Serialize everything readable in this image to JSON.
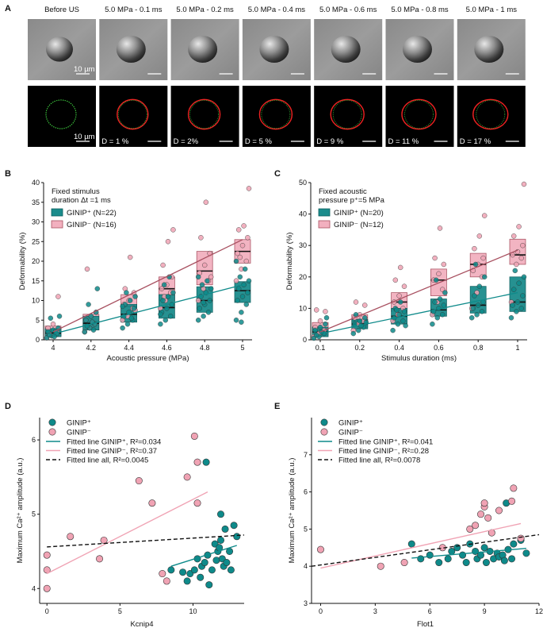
{
  "colors": {
    "teal": "#0e8a8a",
    "teal_fill": "#1b8c8c",
    "teal_dark": "#0b5e5e",
    "pink": "#f0a3b4",
    "pink_fill": "#f2b0bf",
    "pink_line": "#a85060",
    "green_trace": "#3fce3f",
    "red_trace": "#ee2222",
    "black": "#111111"
  },
  "panel_a": {
    "label": "A",
    "scale_bar_label": "10 µm",
    "frames": [
      {
        "title": "Before US",
        "deformability": ""
      },
      {
        "title": "5.0 MPa - 0.1 ms",
        "deformability": "D = 1 %"
      },
      {
        "title": "5.0 MPa - 0.2 ms",
        "deformability": "D = 2%"
      },
      {
        "title": "5.0 MPa - 0.4 ms",
        "deformability": "D = 5 %"
      },
      {
        "title": "5.0 MPa - 0.6 ms",
        "deformability": "D = 9 %"
      },
      {
        "title": "5.0 MPa - 0.8 ms",
        "deformability": "D = 11 %"
      },
      {
        "title": "5.0 MPa - 1 ms",
        "deformability": "D = 17 %"
      }
    ]
  },
  "panel_b": {
    "label": "B"
  },
  "panel_c": {
    "label": "C"
  },
  "panel_d": {
    "label": "D"
  },
  "panel_e": {
    "label": "E"
  },
  "chart_data": [
    {
      "id": "B",
      "type": "box",
      "annotation": [
        "Fixed stimulus",
        "duration Δt =1 ms"
      ],
      "xlabel": "Acoustic pressure (MPa)",
      "ylabel": "Deformability (%)",
      "categories": [
        "4",
        "4.2",
        "4.4",
        "4.6",
        "4.8",
        "5"
      ],
      "ylim": [
        0,
        40
      ],
      "yticks": [
        0,
        5,
        10,
        15,
        20,
        25,
        30,
        35,
        40
      ],
      "series": [
        {
          "name": "GINIP⁺ (N=22)",
          "color": "teal",
          "boxes": [
            {
              "q1": 0.8,
              "median": 1.7,
              "q3": 2.8
            },
            {
              "q1": 2.5,
              "median": 4.2,
              "q3": 6.0
            },
            {
              "q1": 4.5,
              "median": 6.5,
              "q3": 9.0
            },
            {
              "q1": 5.5,
              "median": 8.2,
              "q3": 11.5
            },
            {
              "q1": 7.0,
              "median": 10.0,
              "q3": 13.5
            },
            {
              "q1": 9.5,
              "median": 12.5,
              "q3": 14.8
            }
          ],
          "points": [
            [
              0.5,
              1,
              1.5,
              2,
              2.5,
              3,
              1.2,
              0.8,
              6,
              5.5,
              2.2
            ],
            [
              2,
              3,
              4,
              5,
              6,
              7,
              3.5,
              4.5,
              13,
              9,
              2.5
            ],
            [
              3,
              4,
              5,
              6,
              7,
              8,
              9,
              10,
              11,
              12,
              5.5,
              8.5
            ],
            [
              4,
              5,
              6,
              7,
              8,
              9,
              10,
              11,
              12,
              14,
              16,
              6.5
            ],
            [
              5,
              6,
              7,
              8,
              9,
              10,
              11,
              12,
              13,
              14,
              15,
              16,
              9.5
            ],
            [
              5,
              7,
              9,
              10,
              11,
              12,
              13,
              14,
              15,
              16,
              18,
              20,
              4.5
            ]
          ],
          "fit": [
            1.5,
            14.0
          ]
        },
        {
          "name": "GINIP⁻ (N=16)",
          "color": "pink",
          "boxes": [
            {
              "q1": 1.0,
              "median": 2.0,
              "q3": 3.5
            },
            {
              "q1": 2.5,
              "median": 4.5,
              "q3": 6.5
            },
            {
              "q1": 6.0,
              "median": 8.5,
              "q3": 11.5
            },
            {
              "q1": 10.0,
              "median": 13.0,
              "q3": 16.0
            },
            {
              "q1": 14.0,
              "median": 17.5,
              "q3": 22.5
            },
            {
              "q1": 19.5,
              "median": 22.5,
              "q3": 25.5
            }
          ],
          "points": [
            [
              0.5,
              1,
              2,
              3,
              4,
              11,
              1.5
            ],
            [
              2,
              3,
              4,
              5,
              6,
              7,
              18,
              4.5
            ],
            [
              5,
              6,
              8,
              9,
              10,
              12,
              13,
              21,
              7.5
            ],
            [
              8,
              10,
              12,
              13,
              14,
              16,
              19,
              25,
              28,
              11
            ],
            [
              10,
              13,
              15,
              17,
              19,
              22,
              26,
              35,
              16
            ],
            [
              15,
              18,
              20,
              22,
              24,
              26,
              28,
              29,
              38.5,
              21
            ]
          ],
          "fit": [
            2.0,
            25.5
          ]
        }
      ]
    },
    {
      "id": "C",
      "type": "box",
      "annotation": [
        "Fixed acoustic",
        "pressure p⁺=5 MPa"
      ],
      "xlabel": "Stimulus duration (ms)",
      "ylabel": "Deformability (%)",
      "categories": [
        "0.1",
        "0.2",
        "0.4",
        "0.6",
        "0.8",
        "1"
      ],
      "ylim": [
        0,
        50
      ],
      "yticks": [
        0,
        10,
        20,
        30,
        40,
        50
      ],
      "series": [
        {
          "name": "GINIP⁺ (N=20)",
          "color": "teal",
          "boxes": [
            {
              "q1": 1.0,
              "median": 2.5,
              "q3": 4.0
            },
            {
              "q1": 3.5,
              "median": 5.0,
              "q3": 6.5
            },
            {
              "q1": 5.0,
              "median": 7.5,
              "q3": 10.0
            },
            {
              "q1": 7.5,
              "median": 9.5,
              "q3": 13.0
            },
            {
              "q1": 8.5,
              "median": 11.0,
              "q3": 17.0
            },
            {
              "q1": 9.0,
              "median": 12.0,
              "q3": 20.0
            }
          ],
          "points": [
            [
              0.5,
              1,
              2,
              3,
              4,
              5,
              1.5,
              2.5,
              7
            ],
            [
              2,
              3,
              4,
              5,
              6,
              7,
              8,
              4.5,
              5.5
            ],
            [
              3,
              5,
              6,
              7,
              8,
              9,
              10,
              12,
              4.5,
              9.5
            ],
            [
              5,
              7,
              8,
              9,
              10,
              11,
              12,
              13,
              15,
              19
            ],
            [
              7,
              8,
              9,
              10,
              11,
              12,
              14,
              17,
              20,
              24
            ],
            [
              7,
              9,
              10,
              11,
              12,
              14,
              16,
              18,
              20,
              22
            ]
          ],
          "fit": [
            2.0,
            15.0
          ]
        },
        {
          "name": "GINIP⁻ (N=12)",
          "color": "pink",
          "boxes": [
            {
              "q1": 1.5,
              "median": 3.0,
              "q3": 5.5
            },
            {
              "q1": 4.0,
              "median": 6.0,
              "q3": 8.0
            },
            {
              "q1": 9.0,
              "median": 12.0,
              "q3": 15.0
            },
            {
              "q1": 14.0,
              "median": 19.0,
              "q3": 22.5
            },
            {
              "q1": 20.0,
              "median": 24.0,
              "q3": 27.5
            },
            {
              "q1": 24.0,
              "median": 27.0,
              "q3": 32.0
            }
          ],
          "points": [
            [
              1,
              2,
              3,
              4,
              6,
              9,
              9.5
            ],
            [
              3,
              5,
              6,
              7,
              8,
              11,
              12
            ],
            [
              6,
              8,
              10,
              12,
              14,
              17,
              19,
              23
            ],
            [
              8,
              12,
              16,
              19,
              21,
              24,
              26,
              35.5
            ],
            [
              10,
              15,
              20,
              22,
              24,
              26,
              29,
              33,
              39.5
            ],
            [
              12,
              24,
              26,
              27,
              28,
              30,
              33,
              36,
              49.5
            ]
          ],
          "fit": [
            2.5,
            28.5
          ]
        }
      ]
    },
    {
      "id": "D",
      "type": "scatter",
      "xlabel": "Kcnip4",
      "ylabel": "Maximum Ca²⁺ amplitude (a.u.)",
      "xlim": [
        -0.5,
        13.5
      ],
      "ylim": [
        3.8,
        6.3
      ],
      "xticks": [
        0,
        5,
        10
      ],
      "yticks": [
        4,
        5,
        6
      ],
      "series": [
        {
          "name": "GINIP⁺",
          "color": "teal",
          "points": [
            [
              8.5,
              4.25
            ],
            [
              9.3,
              4.22
            ],
            [
              9.6,
              4.1
            ],
            [
              9.8,
              4.2
            ],
            [
              10.1,
              4.25
            ],
            [
              10.3,
              4.4
            ],
            [
              10.5,
              4.15
            ],
            [
              10.6,
              4.3
            ],
            [
              10.8,
              4.35
            ],
            [
              11.0,
              4.45
            ],
            [
              11.1,
              4.05
            ],
            [
              11.3,
              4.25
            ],
            [
              11.5,
              4.6
            ],
            [
              11.6,
              4.38
            ],
            [
              11.7,
              4.5
            ],
            [
              11.8,
              4.55
            ],
            [
              11.9,
              4.65
            ],
            [
              12.0,
              4.4
            ],
            [
              12.1,
              4.3
            ],
            [
              12.2,
              4.8
            ],
            [
              12.3,
              4.35
            ],
            [
              12.5,
              4.5
            ],
            [
              12.6,
              4.25
            ],
            [
              12.8,
              4.85
            ],
            [
              13.0,
              4.7
            ],
            [
              11.9,
              5.0
            ],
            [
              10.9,
              5.7
            ]
          ]
        },
        {
          "name": "GINIP⁻",
          "color": "pink",
          "points": [
            [
              0,
              4.0
            ],
            [
              0,
              4.25
            ],
            [
              0,
              4.45
            ],
            [
              1.6,
              4.7
            ],
            [
              3.6,
              4.4
            ],
            [
              3.9,
              4.65
            ],
            [
              6.3,
              5.45
            ],
            [
              7.2,
              5.15
            ],
            [
              7.9,
              4.2
            ],
            [
              8.2,
              4.1
            ],
            [
              9.6,
              5.5
            ],
            [
              10.1,
              6.05
            ],
            [
              10.3,
              5.15
            ],
            [
              10.3,
              5.7
            ]
          ]
        }
      ],
      "fits": [
        {
          "label": "Fitted line GINIP⁺, R²=0.034",
          "color": "teal",
          "dash": false,
          "x": [
            8.5,
            13.0
          ],
          "y": [
            4.3,
            4.58
          ]
        },
        {
          "label": "Fitted line GINIP⁻, R²=0.37",
          "color": "pink",
          "dash": false,
          "x": [
            0,
            11.0
          ],
          "y": [
            4.2,
            5.3
          ]
        },
        {
          "label": "Fitted line all, R²=0.0045",
          "color": "black",
          "dash": true,
          "x": [
            0,
            13.5
          ],
          "y": [
            4.56,
            4.72
          ]
        }
      ]
    },
    {
      "id": "E",
      "type": "scatter",
      "xlabel": "Flot1",
      "ylabel": "Maximum Ca²⁺ amplitude (a.u.)",
      "xlim": [
        -0.5,
        12
      ],
      "ylim": [
        3,
        8
      ],
      "xticks": [
        0,
        3,
        6,
        9,
        12
      ],
      "yticks": [
        3,
        4,
        5,
        6,
        7
      ],
      "series": [
        {
          "name": "GINIP⁺",
          "color": "teal",
          "points": [
            [
              5.0,
              4.6
            ],
            [
              5.5,
              4.2
            ],
            [
              6.0,
              4.3
            ],
            [
              6.5,
              4.1
            ],
            [
              7.0,
              4.2
            ],
            [
              7.2,
              4.4
            ],
            [
              7.5,
              4.5
            ],
            [
              7.8,
              4.3
            ],
            [
              8.0,
              4.1
            ],
            [
              8.2,
              4.6
            ],
            [
              8.5,
              4.4
            ],
            [
              8.6,
              4.2
            ],
            [
              8.8,
              4.3
            ],
            [
              9.0,
              4.5
            ],
            [
              9.1,
              4.1
            ],
            [
              9.3,
              4.4
            ],
            [
              9.5,
              4.2
            ],
            [
              9.7,
              4.35
            ],
            [
              9.8,
              4.25
            ],
            [
              10.0,
              4.3
            ],
            [
              10.1,
              4.15
            ],
            [
              10.3,
              4.45
            ],
            [
              10.5,
              4.2
            ],
            [
              10.6,
              4.6
            ],
            [
              11.3,
              4.35
            ],
            [
              10.2,
              5.7
            ],
            [
              11.0,
              4.7
            ]
          ]
        },
        {
          "name": "GINIP⁻",
          "color": "pink",
          "points": [
            [
              0,
              4.45
            ],
            [
              3.3,
              4.0
            ],
            [
              4.6,
              4.1
            ],
            [
              6.7,
              4.5
            ],
            [
              8.2,
              5.0
            ],
            [
              8.5,
              5.1
            ],
            [
              8.8,
              5.4
            ],
            [
              9.0,
              5.6
            ],
            [
              9.0,
              5.7
            ],
            [
              9.2,
              5.3
            ],
            [
              9.4,
              4.9
            ],
            [
              9.8,
              5.5
            ],
            [
              10.6,
              6.1
            ],
            [
              10.5,
              5.75
            ],
            [
              11.0,
              4.75
            ]
          ]
        }
      ],
      "fits": [
        {
          "label": "Fitted line GINIP⁺, R²=0.041",
          "color": "teal",
          "dash": false,
          "x": [
            5.0,
            11.3
          ],
          "y": [
            4.22,
            4.48
          ]
        },
        {
          "label": "Fitted line GINIP⁻, R²=0.28",
          "color": "pink",
          "dash": false,
          "x": [
            0,
            11.0
          ],
          "y": [
            3.95,
            5.15
          ]
        },
        {
          "label": "Fitted line all, R²=0.0078",
          "color": "black",
          "dash": true,
          "x": [
            -0.5,
            12
          ],
          "y": [
            4.0,
            4.85
          ]
        }
      ]
    }
  ]
}
